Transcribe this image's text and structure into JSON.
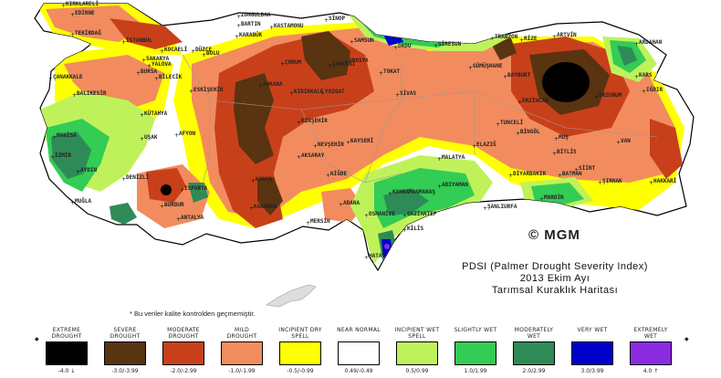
{
  "map": {
    "copyright": "© MGM",
    "title_lines": [
      "PDSI (Palmer Drought Severity Index)",
      "2013 Ekim Ayı",
      "Tarımsal Kuraklık Haritası"
    ],
    "footnote": "* Bu veriler kalite kontrolden geçmemiştir.",
    "cities": [
      "KIRKLARELİ",
      "EDİRNE",
      "TEKİRDAĞ",
      "İSTANBUL",
      "KOCAELİ",
      "SAKARYA",
      "DÜZCE",
      "BOLU",
      "ZONGULDAK",
      "BARTIN",
      "KARABÜK",
      "KASTAMONU",
      "SİNOP",
      "SAMSUN",
      "ORDU",
      "GİRESUN",
      "TRABZON",
      "RİZE",
      "ARTVİN",
      "ARDAHAN",
      "KARS",
      "IĞDIR",
      "ERZURUM",
      "ERZİNCAN",
      "BAYBURT",
      "GÜMÜŞHANE",
      "TOKAT",
      "AMASYA",
      "ÇORUM",
      "ÇANKIRI",
      "ANKARA",
      "KIRIKKALE",
      "YOZGAT",
      "SİVAS",
      "KIRŞEHİR",
      "NEVŞEHİR",
      "KAYSERİ",
      "AKSARAY",
      "KONYA",
      "KARAMAN",
      "NİĞDE",
      "ADANA",
      "MERSİN",
      "OSMANİYE",
      "HATAY",
      "KİLİS",
      "GAZİANTEP",
      "ADIYAMAN",
      "MALATYA",
      "ELAZIĞ",
      "TUNCELİ",
      "BİNGÖL",
      "MUŞ",
      "BİTLİS",
      "VAN",
      "HAKKARİ",
      "ŞIRNAK",
      "SİİRT",
      "BATMAN",
      "DİYARBAKIR",
      "MARDİN",
      "ŞANLIURFA",
      "KAHRAMANMARAŞ",
      "ESKİŞEHİR",
      "BİLECİK",
      "BURSA",
      "YALOVA",
      "BALIKESİR",
      "ÇANAKKALE",
      "MANİSA",
      "İZMİR",
      "AYDIN",
      "MUĞLA",
      "DENİZLİ",
      "UŞAK",
      "KÜTAHYA",
      "AFYON",
      "ISPARTA",
      "BURDUR",
      "ANTALYA"
    ]
  },
  "legend": {
    "items": [
      {
        "label": "EXTREME DROUGHT",
        "color": "#000000",
        "value": "-4.0 ↓"
      },
      {
        "label": "SEVERE DROUGHT",
        "color": "#5a3310",
        "value": "-3.0/-3.99"
      },
      {
        "label": "MODERATE DROUGHT",
        "color": "#c8401a",
        "value": "-2.0/-2.99"
      },
      {
        "label": "MILD DROUGHT",
        "color": "#f28c5e",
        "value": "-1.0/-1.99"
      },
      {
        "label": "INCIPIENT DRY SPELL",
        "color": "#ffff00",
        "value": "-0.5/-0.99"
      },
      {
        "label": "NEAR NORMAL",
        "color": "#ffffff",
        "value": "0.49/-0.49"
      },
      {
        "label": "INCIPIENT WET SPELL",
        "color": "#bff25a",
        "value": "0.5/0.99"
      },
      {
        "label": "SLIGHTLY WET",
        "color": "#33cc55",
        "value": "1.0/1.99"
      },
      {
        "label": "MODERATELY WET",
        "color": "#2e8b57",
        "value": "2.0/2.99"
      },
      {
        "label": "VERY WET",
        "color": "#0000cc",
        "value": "3.0/3.99"
      },
      {
        "label": "EXTREMELY WET",
        "color": "#8a2be2",
        "value": "4.0 ↑"
      }
    ]
  }
}
